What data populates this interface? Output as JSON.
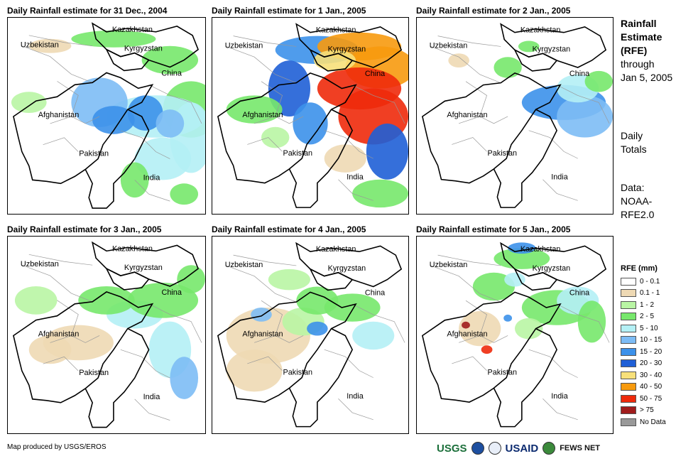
{
  "panels": [
    {
      "title": "Daily Rainfall estimate for 31 Dec., 2004"
    },
    {
      "title": "Daily Rainfall estimate for 1 Jan., 2005"
    },
    {
      "title": "Daily Rainfall estimate for 2 Jan., 2005"
    },
    {
      "title": "Daily Rainfall estimate for 3 Jan., 2005"
    },
    {
      "title": "Daily Rainfall estimate for 4 Jan., 2005"
    },
    {
      "title": "Daily Rainfall estimate for 5 Jan., 2005"
    }
  ],
  "map_labels": {
    "kazakhstan": "Kazakhstan",
    "uzbekistan": "Uzbekistan",
    "kyrgyzstan": "Kyrgyzstan",
    "china": "China",
    "afghanistan": "Afghanistan",
    "pakistan": "Pakistan",
    "india": "India"
  },
  "side": {
    "title_lines": [
      "Rainfall",
      "Estimate",
      "(RFE)"
    ],
    "through": "through",
    "date": "Jan 5, 2005",
    "daily_lines": [
      "Daily",
      "Totals"
    ],
    "data_lines": [
      "Data:",
      "NOAA-",
      "RFE2.0"
    ]
  },
  "legend": {
    "title": "RFE (mm)",
    "items": [
      {
        "label": "0 - 0.1",
        "color": "#ffffff"
      },
      {
        "label": "0.1 - 1",
        "color": "#eed9b4"
      },
      {
        "label": "1 - 2",
        "color": "#b9f5a4"
      },
      {
        "label": "2 - 5",
        "color": "#77e86c"
      },
      {
        "label": "5 - 10",
        "color": "#b4f0f5"
      },
      {
        "label": "10 - 15",
        "color": "#7dbcf5"
      },
      {
        "label": "15 - 20",
        "color": "#3c91ea"
      },
      {
        "label": "20 - 30",
        "color": "#1f5fd6"
      },
      {
        "label": "30 - 40",
        "color": "#f7e07a"
      },
      {
        "label": "40 - 50",
        "color": "#f79a0e"
      },
      {
        "label": "50 - 75",
        "color": "#ee2a0b"
      },
      {
        "label": "> 75",
        "color": "#a01c1c"
      },
      {
        "label": "No Data",
        "color": "#999999"
      }
    ]
  },
  "credit": "Map produced by USGS/EROS",
  "logos": {
    "usgs": "USGS",
    "usaid": "USAID",
    "fews": "FEWS NET"
  }
}
